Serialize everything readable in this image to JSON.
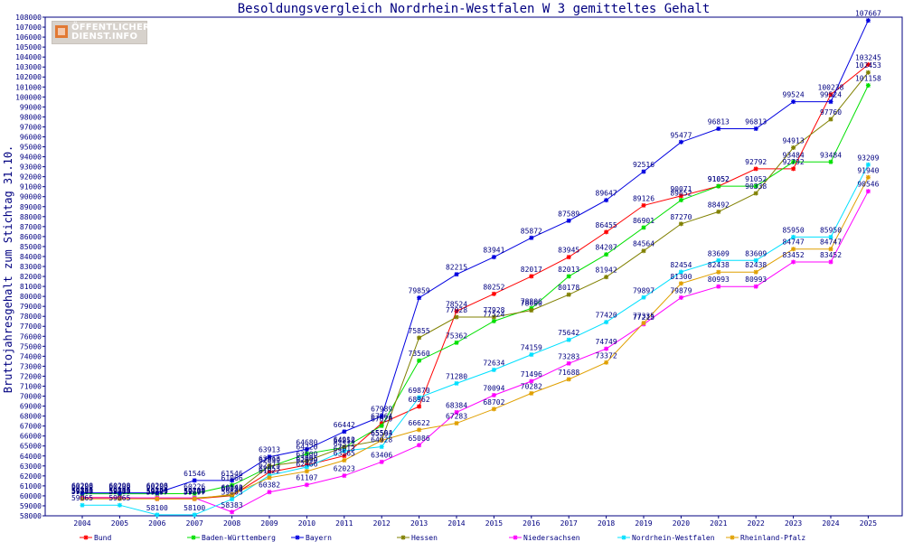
{
  "chart_data": {
    "type": "line",
    "title": "Besoldungsvergleich Nordrhein-Westfalen W 3 gemitteltes Gehalt",
    "ylabel": "Bruttojahresgehalt zum Stichtag 31.10.",
    "xlabel": "",
    "categories": [
      "2004",
      "2005",
      "2006",
      "2007",
      "2008",
      "2009",
      "2010",
      "2011",
      "2012",
      "2013",
      "2014",
      "2015",
      "2016",
      "2017",
      "2018",
      "2019",
      "2020",
      "2021",
      "2022",
      "2023",
      "2024",
      "2025"
    ],
    "ylim": [
      58000,
      108000
    ],
    "ytick_step": 1000,
    "grid": false,
    "legend": "bottom",
    "series": [
      {
        "name": "Bund",
        "color": "#ff0000",
        "values": [
          59835,
          59835,
          59697,
          59697,
          60023,
          62373,
          63095,
          64013,
          67264,
          68962,
          78524,
          80252,
          82017,
          83945,
          86455,
          89126,
          90071,
          91052,
          92792,
          92792,
          100238,
          103245
        ]
      },
      {
        "name": "Baden-Württemberg",
        "color": "#00e000",
        "values": [
          60209,
          60209,
          60209,
          60226,
          61066,
          62899,
          64220,
          64858,
          67020,
          73560,
          75362,
          77524,
          78806,
          82013,
          84207,
          86901,
          89652,
          91052,
          91052,
          93484,
          93484,
          101158
        ]
      },
      {
        "name": "Bayern",
        "color": "#0000e0",
        "values": [
          60298,
          60298,
          60298,
          61546,
          61546,
          63913,
          64680,
          66442,
          67989,
          79859,
          82215,
          83941,
          85872,
          87589,
          89647,
          92516,
          95477,
          96813,
          96813,
          99524,
          99524,
          107667
        ]
      },
      {
        "name": "Hessen",
        "color": "#808000",
        "values": [
          59776,
          59776,
          59776,
          59776,
          60050,
          63013,
          63500,
          64912,
          65594,
          75855,
          77928,
          77928,
          78600,
          80178,
          81942,
          84564,
          87270,
          88492,
          90338,
          94913,
          97760,
          102453
        ]
      },
      {
        "name": "Niedersachsen",
        "color": "#ff00ff",
        "values": [
          59799,
          59799,
          59799,
          59799,
          58383,
          60382,
          61107,
          62023,
          63406,
          65086,
          68384,
          70094,
          71496,
          73283,
          74749,
          77215,
          79879,
          80993,
          80993,
          83452,
          83452,
          90546
        ]
      },
      {
        "name": "Nordrhein-Westfalen",
        "color": "#00e0ff",
        "values": [
          59065,
          59065,
          58100,
          58100,
          59663,
          62053,
          62890,
          64512,
          64928,
          69870,
          71280,
          72634,
          74159,
          75642,
          77420,
          79897,
          82454,
          83609,
          83609,
          85950,
          85950,
          93209
        ]
      },
      {
        "name": "Rheinland-Pfalz",
        "color": "#e0a000",
        "values": [
          59707,
          59707,
          59707,
          59707,
          60143,
          61822,
          62466,
          63565,
          65563,
          66622,
          67283,
          68702,
          70282,
          71688,
          73372,
          77335,
          81300,
          82438,
          82438,
          84747,
          84747,
          91940
        ]
      }
    ]
  },
  "logo": {
    "line1": "ÖFFENTLICHER",
    "line2": "DIENST.INFO",
    "color": "#e27933"
  },
  "style": {
    "axis_color": "#000080",
    "text_color": "#000080",
    "background": "#ffffff"
  }
}
